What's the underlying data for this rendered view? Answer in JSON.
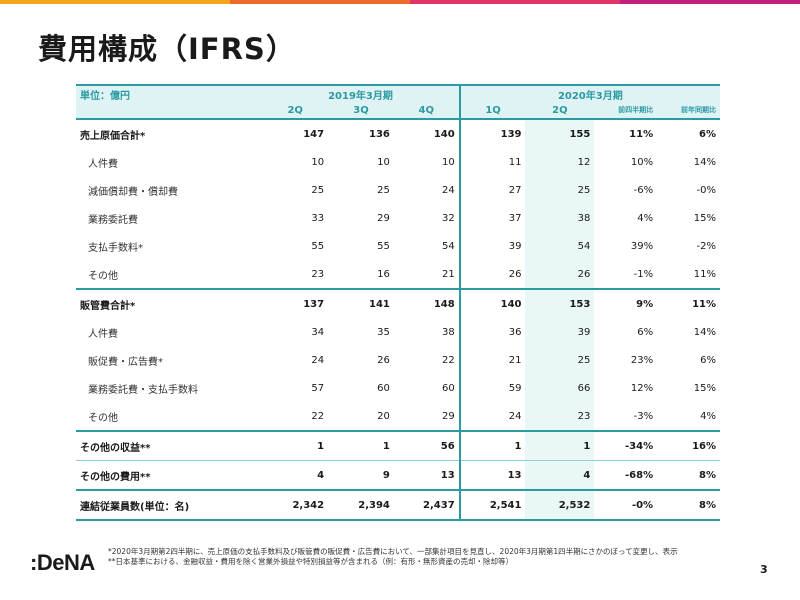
{
  "title": "費用構成（IFRS）",
  "brand_colors": [
    "#f3a51c",
    "#ec6a2f",
    "#e2336b",
    "#c2207f"
  ],
  "accent_color": "#2a9aa3",
  "table": {
    "unit": "単位：億円",
    "group1": "2019年3月期",
    "group2": "2020年3月期",
    "cols": [
      "2Q",
      "3Q",
      "4Q",
      "1Q",
      "2Q",
      "前四半期比",
      "前年同期比"
    ],
    "rows": [
      {
        "label": "売上原価合計*",
        "v": [
          "147",
          "136",
          "140",
          "139",
          "155",
          "11%",
          "6%"
        ]
      },
      {
        "label": "人件費",
        "v": [
          "10",
          "10",
          "10",
          "11",
          "12",
          "10%",
          "14%"
        ]
      },
      {
        "label": "減価償却費・償却費",
        "v": [
          "25",
          "25",
          "24",
          "27",
          "25",
          "-6%",
          "-0%"
        ]
      },
      {
        "label": "業務委託費",
        "v": [
          "33",
          "29",
          "32",
          "37",
          "38",
          "4%",
          "15%"
        ]
      },
      {
        "label": "支払手数料*",
        "v": [
          "55",
          "55",
          "54",
          "39",
          "54",
          "39%",
          "-2%"
        ]
      },
      {
        "label": "その他",
        "v": [
          "23",
          "16",
          "21",
          "26",
          "26",
          "-1%",
          "11%"
        ]
      },
      {
        "label": "販管費合計*",
        "v": [
          "137",
          "141",
          "148",
          "140",
          "153",
          "9%",
          "11%"
        ]
      },
      {
        "label": "人件費",
        "v": [
          "34",
          "35",
          "38",
          "36",
          "39",
          "6%",
          "14%"
        ]
      },
      {
        "label": "販促費・広告費*",
        "v": [
          "24",
          "26",
          "22",
          "21",
          "25",
          "23%",
          "6%"
        ]
      },
      {
        "label": "業務委託費・支払手数料",
        "v": [
          "57",
          "60",
          "60",
          "59",
          "66",
          "12%",
          "15%"
        ]
      },
      {
        "label": "その他",
        "v": [
          "22",
          "20",
          "29",
          "24",
          "23",
          "-3%",
          "4%"
        ]
      },
      {
        "label": "その他の収益**",
        "v": [
          "1",
          "1",
          "56",
          "1",
          "1",
          "-34%",
          "16%"
        ]
      },
      {
        "label": "その他の費用**",
        "v": [
          "4",
          "9",
          "13",
          "13",
          "4",
          "-68%",
          "8%"
        ]
      },
      {
        "label": "連結従業員数(単位：名)",
        "v": [
          "2,342",
          "2,394",
          "2,437",
          "2,541",
          "2,532",
          "-0%",
          "8%"
        ]
      }
    ]
  },
  "footnote1": "*2020年3月期第2四半期に、売上原価の支払手数料及び販管費の販促費・広告費において、一部集計項目を見直し、2020年3月期第1四半期にさかのぼって変更し、表示",
  "footnote2": "**日本基準における、金融収益・費用を除く営業外損益や特別損益等が含まれる（例：有形・無形資産の売却・除却等）",
  "logo_text": ":DeNA",
  "page_number": "3"
}
